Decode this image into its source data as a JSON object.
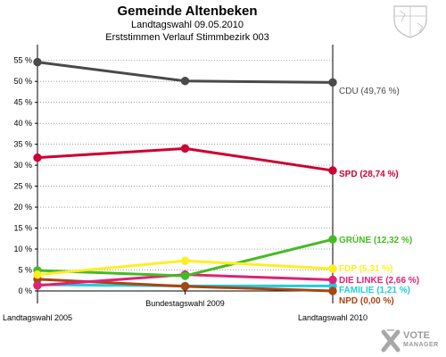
{
  "header": {
    "title": "Gemeinde Altenbeken",
    "subtitle1": "Landtagswahl 09.05.2010",
    "subtitle2": "Erststimmen Verlauf Stimmbezirk  003"
  },
  "logo": {
    "line1": "VOTE",
    "line2": "MANAGER",
    "icon": "vote-manager-logo-icon"
  },
  "crest": {
    "icon": "coat-of-arms-icon"
  },
  "colors": {
    "CDU": "#4a4a4a",
    "SPD": "#cc0033",
    "GRÜNE": "#44bb22",
    "FDP": "#ffee22",
    "DIE LINKE": "#dd2277",
    "FAMILIE": "#22ccdd",
    "NPD": "#aa4411",
    "axis": "#000000",
    "grid": "#666666"
  },
  "chart_data": {
    "type": "line",
    "title": "Gemeinde Altenbeken",
    "subtitle": "Landtagswahl 09.05.2010 / Erststimmen Verlauf Stimmbezirk  003",
    "categories": [
      "Landtagswahl 2005",
      "Bundestagswahl 2009",
      "Landtagswahl 2010"
    ],
    "ylim": [
      0,
      57.5
    ],
    "yticks": [
      0,
      5,
      10,
      15,
      20,
      25,
      30,
      35,
      40,
      45,
      50,
      55
    ],
    "ytick_labels": [
      "0 %",
      "5 %",
      "10 %",
      "15 %",
      "20 %",
      "25 %",
      "30 %",
      "35 %",
      "40 %",
      "45 %",
      "50 %",
      "55 %"
    ],
    "grid": true,
    "series": [
      {
        "name": "CDU",
        "values": [
          54.6,
          50.1,
          49.76
        ],
        "end_label": "CDU (49,76 %)"
      },
      {
        "name": "SPD",
        "values": [
          31.8,
          34.0,
          28.74
        ],
        "end_label": "SPD (28,74 %)"
      },
      {
        "name": "GRÜNE",
        "values": [
          4.9,
          3.6,
          12.32
        ],
        "end_label": "GRÜNE (12,32 %)"
      },
      {
        "name": "FDP",
        "values": [
          3.9,
          7.2,
          5.31
        ],
        "end_label": "FDP (5,31 %)"
      },
      {
        "name": "DIE LINKE",
        "values": [
          1.3,
          3.9,
          2.66
        ],
        "end_label": "DIE LINKE (2,66 %)"
      },
      {
        "name": "FAMILIE",
        "values": [
          1.5,
          1.2,
          1.21
        ],
        "end_label": "FAMILIE (1,21 %)"
      },
      {
        "name": "NPD",
        "values": [
          2.8,
          1.1,
          0.0
        ],
        "end_label": "NPD (0,00 %)"
      }
    ]
  }
}
